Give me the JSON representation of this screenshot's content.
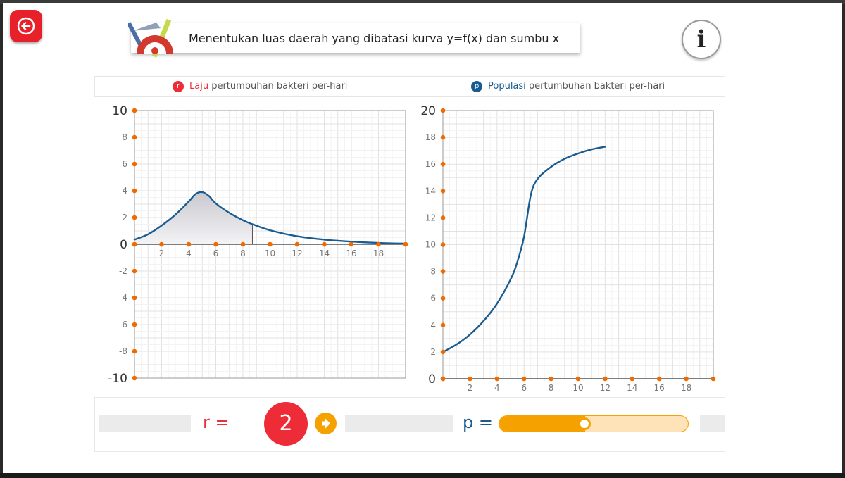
{
  "header": {
    "title": "Menentukan luas daerah yang dibatasi kurva y=f(x) dan sumbu x",
    "back_icon": "back-arrow-icon",
    "info_label": "i"
  },
  "legend": {
    "rate": {
      "badge": "r",
      "highlight": "Laju",
      "rest": " pertumbuhan bakteri per-hari",
      "color": "#e8303a"
    },
    "population": {
      "badge": "p",
      "highlight": "Populasi",
      "rest": " pertumbuhan bakteri per-hari",
      "color": "#1a5c90"
    }
  },
  "controls": {
    "r_label": "r =",
    "r_value": "2",
    "p_label": "p =",
    "p_slider_value": 0.45,
    "play_icon": "play-arrow-icon"
  },
  "colors": {
    "accent_red": "#ee2c37",
    "accent_orange": "#f5a200",
    "curve_blue": "#1a5c90"
  },
  "chart_data": [
    {
      "type": "area",
      "title": "Laju pertumbuhan bakteri per-hari",
      "xlim": [
        0,
        20
      ],
      "ylim": [
        -10,
        10
      ],
      "x_ticks": [
        2,
        4,
        6,
        8,
        10,
        12,
        14,
        16,
        18
      ],
      "y_ticks": [
        10,
        8,
        6,
        4,
        2,
        0,
        -2,
        -4,
        -6,
        -8,
        -10
      ],
      "peak": {
        "x": 5,
        "y": 3.9
      },
      "x": [
        0,
        1,
        2,
        3,
        4,
        4.5,
        5,
        5.5,
        6,
        7,
        8,
        8.7,
        10,
        12,
        14,
        16,
        18,
        20
      ],
      "y": [
        0.35,
        0.75,
        1.4,
        2.2,
        3.2,
        3.75,
        3.9,
        3.6,
        3.05,
        2.35,
        1.8,
        1.5,
        1.05,
        0.6,
        0.35,
        0.2,
        0.1,
        0.05
      ],
      "shaded_range": [
        0,
        8.7
      ]
    },
    {
      "type": "line",
      "title": "Populasi pertumbuhan bakteri per-hari",
      "xlim": [
        0,
        20
      ],
      "ylim": [
        0,
        20
      ],
      "x_ticks": [
        2,
        4,
        6,
        8,
        10,
        12,
        14,
        16,
        18
      ],
      "y_ticks": [
        20,
        18,
        16,
        14,
        12,
        10,
        8,
        6,
        4,
        2,
        0
      ],
      "x": [
        0,
        1,
        2,
        3,
        4,
        5,
        5.5,
        6,
        6.5,
        7,
        8,
        9,
        10,
        11,
        12
      ],
      "y": [
        2,
        2.55,
        3.3,
        4.3,
        5.6,
        7.4,
        8.7,
        10.6,
        13.7,
        14.9,
        15.8,
        16.4,
        16.8,
        17.1,
        17.3
      ]
    }
  ]
}
